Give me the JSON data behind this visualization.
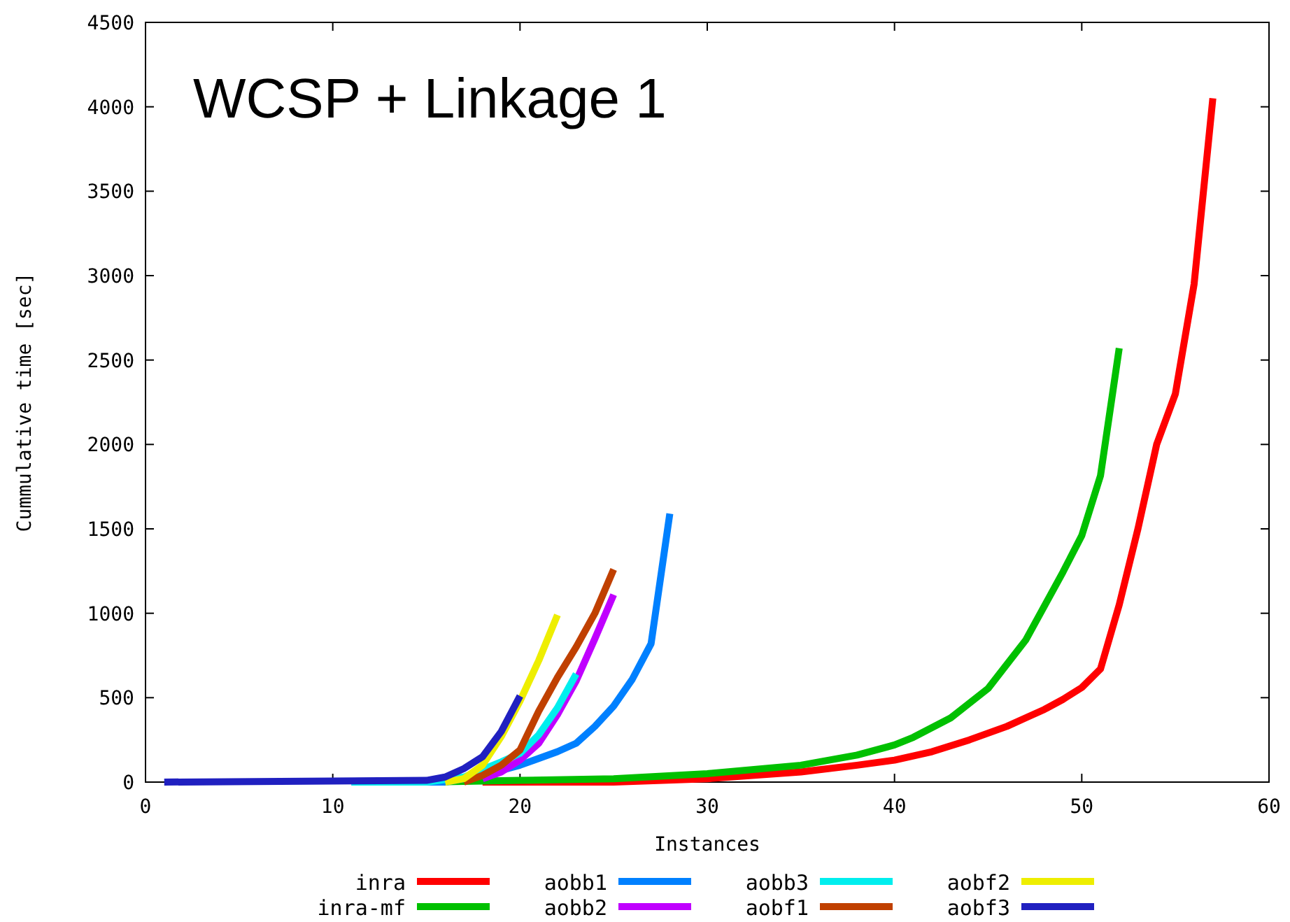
{
  "chart_data": {
    "type": "line",
    "title": "WCSP + Linkage 1",
    "xlabel": "Instances",
    "ylabel": "Cummulative time [sec]",
    "xlim": [
      0,
      60
    ],
    "xticks": [
      0,
      10,
      20,
      30,
      40,
      50,
      60
    ],
    "ylim": [
      0,
      4500
    ],
    "yticks": [
      0,
      500,
      1000,
      1500,
      2000,
      2500,
      3000,
      3500,
      4000,
      4500
    ],
    "grid": false,
    "legend": "bottom",
    "marker": "none",
    "line_style": "solid",
    "series": [
      {
        "name": "inra",
        "color": "#ff0000",
        "x": [
          18,
          25,
          30,
          35,
          38,
          40,
          42,
          44,
          46,
          47,
          48,
          49,
          50,
          51,
          52,
          53,
          54,
          55,
          56,
          57
        ],
        "values": [
          0,
          0,
          20,
          60,
          100,
          130,
          180,
          250,
          330,
          380,
          430,
          490,
          560,
          670,
          1050,
          1500,
          2000,
          2300,
          2950,
          4050
        ]
      },
      {
        "name": "inra-mf",
        "color": "#00c000",
        "x": [
          15,
          20,
          25,
          30,
          35,
          38,
          40,
          41,
          43,
          45,
          47,
          49,
          50,
          51,
          52
        ],
        "values": [
          0,
          10,
          20,
          50,
          100,
          160,
          220,
          265,
          380,
          555,
          840,
          1245,
          1460,
          1815,
          2570
        ]
      },
      {
        "name": "aobb1",
        "color": "#0080ff",
        "x": [
          11,
          16,
          18,
          20,
          22,
          23,
          24,
          25,
          26,
          27,
          28
        ],
        "values": [
          0,
          0,
          40,
          100,
          180,
          230,
          330,
          450,
          610,
          820,
          1590
        ]
      },
      {
        "name": "aobb2",
        "color": "#c000ff",
        "x": [
          18,
          19,
          20,
          21,
          22,
          23,
          24,
          25
        ],
        "values": [
          20,
          60,
          130,
          230,
          400,
          600,
          850,
          1110
        ]
      },
      {
        "name": "aobb3",
        "color": "#00eeee",
        "x": [
          11,
          15,
          17,
          19,
          20,
          21,
          22,
          23
        ],
        "values": [
          0,
          0,
          30,
          120,
          170,
          280,
          440,
          640
        ]
      },
      {
        "name": "aobf1",
        "color": "#c04000",
        "x": [
          17,
          18,
          19,
          20,
          21,
          22,
          23,
          24,
          25
        ],
        "values": [
          0,
          40,
          100,
          190,
          420,
          620,
          800,
          1000,
          1260
        ]
      },
      {
        "name": "aobf2",
        "color": "#eeee00",
        "x": [
          16,
          17,
          18,
          19,
          20,
          21,
          22
        ],
        "values": [
          0,
          20,
          100,
          270,
          480,
          720,
          990
        ]
      },
      {
        "name": "aobf3",
        "color": "#2020c0",
        "x": [
          1,
          15,
          16,
          17,
          18,
          19,
          20
        ],
        "values": [
          0,
          10,
          30,
          80,
          150,
          300,
          510
        ]
      }
    ]
  }
}
